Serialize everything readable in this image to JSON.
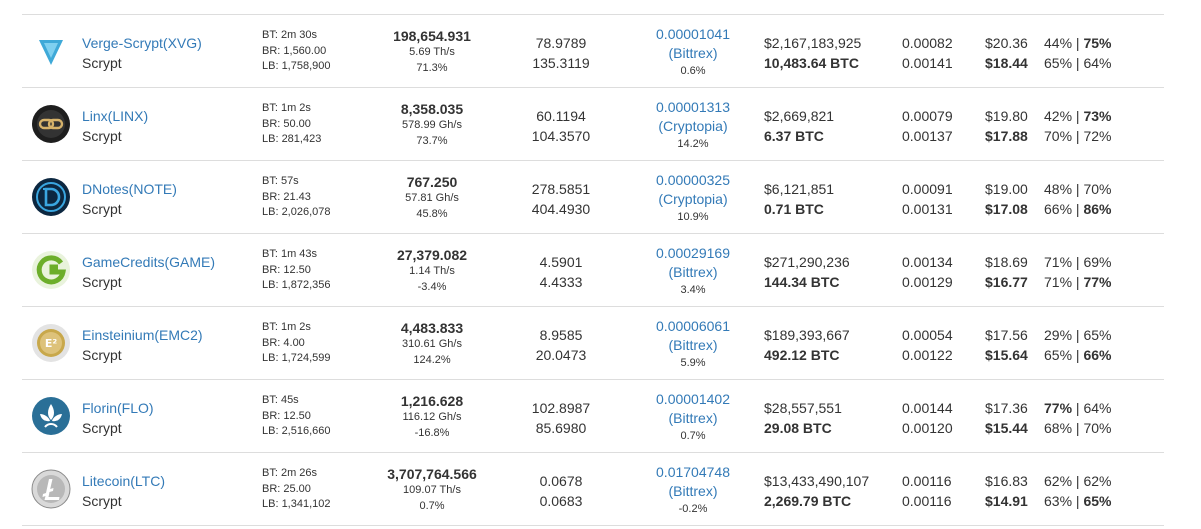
{
  "rows": [
    {
      "id": "xvg",
      "icon": "verge-icon",
      "coin_name": "Verge-Scrypt(XVG)",
      "algorithm": "Scrypt",
      "block_time": "BT: 2m 30s",
      "block_reward": "BR: 1,560.00",
      "last_block": "LB: 1,758,900",
      "difficulty": "198,654.931",
      "nethash": "5.69 Th/s",
      "difficulty_change": "71.3%",
      "est_rewards": "78.9789",
      "est_rewards_24h": "135.3119",
      "exchange_rate": "0.00001041",
      "exchange": "(Bittrex)",
      "exchange_rate_change": "0.6%",
      "market_cap": "$2,167,183,925",
      "volume": "10,483.64 BTC",
      "btc_rev": "0.00082",
      "btc_rev_24h": "0.00141",
      "rev": "$20.36",
      "rev_24h": "$18.44",
      "profit_a_1": "44%",
      "profit_b_1": "75%",
      "bold_a_1": false,
      "bold_b_1": true,
      "profit_a_2": "65%",
      "profit_b_2": "64%",
      "bold_a_2": false,
      "bold_b_2": false
    },
    {
      "id": "linx",
      "icon": "linx-icon",
      "coin_name": "Linx(LINX)",
      "algorithm": "Scrypt",
      "block_time": "BT: 1m 2s",
      "block_reward": "BR: 50.00",
      "last_block": "LB: 281,423",
      "difficulty": "8,358.035",
      "nethash": "578.99 Gh/s",
      "difficulty_change": "73.7%",
      "est_rewards": "60.1194",
      "est_rewards_24h": "104.3570",
      "exchange_rate": "0.00001313",
      "exchange": "(Cryptopia)",
      "exchange_rate_change": "14.2%",
      "market_cap": "$2,669,821",
      "volume": "6.37 BTC",
      "btc_rev": "0.00079",
      "btc_rev_24h": "0.00137",
      "rev": "$19.80",
      "rev_24h": "$17.88",
      "profit_a_1": "42%",
      "profit_b_1": "73%",
      "bold_a_1": false,
      "bold_b_1": true,
      "profit_a_2": "70%",
      "profit_b_2": "72%",
      "bold_a_2": false,
      "bold_b_2": false
    },
    {
      "id": "note",
      "icon": "dnotes-icon",
      "coin_name": "DNotes(NOTE)",
      "algorithm": "Scrypt",
      "block_time": "BT: 57s",
      "block_reward": "BR: 21.43",
      "last_block": "LB: 2,026,078",
      "difficulty": "767.250",
      "nethash": "57.81 Gh/s",
      "difficulty_change": "45.8%",
      "est_rewards": "278.5851",
      "est_rewards_24h": "404.4930",
      "exchange_rate": "0.00000325",
      "exchange": "(Cryptopia)",
      "exchange_rate_change": "10.9%",
      "market_cap": "$6,121,851",
      "volume": "0.71 BTC",
      "btc_rev": "0.00091",
      "btc_rev_24h": "0.00131",
      "rev": "$19.00",
      "rev_24h": "$17.08",
      "profit_a_1": "48%",
      "profit_b_1": "70%",
      "bold_a_1": false,
      "bold_b_1": false,
      "profit_a_2": "66%",
      "profit_b_2": "86%",
      "bold_a_2": false,
      "bold_b_2": true
    },
    {
      "id": "game",
      "icon": "gamecredits-icon",
      "coin_name": "GameCredits(GAME)",
      "algorithm": "Scrypt",
      "block_time": "BT: 1m 43s",
      "block_reward": "BR: 12.50",
      "last_block": "LB: 1,872,356",
      "difficulty": "27,379.082",
      "nethash": "1.14 Th/s",
      "difficulty_change": "-3.4%",
      "est_rewards": "4.5901",
      "est_rewards_24h": "4.4333",
      "exchange_rate": "0.00029169",
      "exchange": "(Bittrex)",
      "exchange_rate_change": "3.4%",
      "market_cap": "$271,290,236",
      "volume": "144.34 BTC",
      "btc_rev": "0.00134",
      "btc_rev_24h": "0.00129",
      "rev": "$18.69",
      "rev_24h": "$16.77",
      "profit_a_1": "71%",
      "profit_b_1": "69%",
      "bold_a_1": false,
      "bold_b_1": false,
      "profit_a_2": "71%",
      "profit_b_2": "77%",
      "bold_a_2": false,
      "bold_b_2": true
    },
    {
      "id": "emc2",
      "icon": "einsteinium-icon",
      "coin_name": "Einsteinium(EMC2)",
      "algorithm": "Scrypt",
      "block_time": "BT: 1m 2s",
      "block_reward": "BR: 4.00",
      "last_block": "LB: 1,724,599",
      "difficulty": "4,483.833",
      "nethash": "310.61 Gh/s",
      "difficulty_change": "124.2%",
      "est_rewards": "8.9585",
      "est_rewards_24h": "20.0473",
      "exchange_rate": "0.00006061",
      "exchange": "(Bittrex)",
      "exchange_rate_change": "5.9%",
      "market_cap": "$189,393,667",
      "volume": "492.12 BTC",
      "btc_rev": "0.00054",
      "btc_rev_24h": "0.00122",
      "rev": "$17.56",
      "rev_24h": "$15.64",
      "profit_a_1": "29%",
      "profit_b_1": "65%",
      "bold_a_1": false,
      "bold_b_1": false,
      "profit_a_2": "65%",
      "profit_b_2": "66%",
      "bold_a_2": false,
      "bold_b_2": true
    },
    {
      "id": "flo",
      "icon": "florin-icon",
      "coin_name": "Florin(FLO)",
      "algorithm": "Scrypt",
      "block_time": "BT: 45s",
      "block_reward": "BR: 12.50",
      "last_block": "LB: 2,516,660",
      "difficulty": "1,216.628",
      "nethash": "116.12 Gh/s",
      "difficulty_change": "-16.8%",
      "est_rewards": "102.8987",
      "est_rewards_24h": "85.6980",
      "exchange_rate": "0.00001402",
      "exchange": "(Bittrex)",
      "exchange_rate_change": "0.7%",
      "market_cap": "$28,557,551",
      "volume": "29.08 BTC",
      "btc_rev": "0.00144",
      "btc_rev_24h": "0.00120",
      "rev": "$17.36",
      "rev_24h": "$15.44",
      "profit_a_1": "77%",
      "profit_b_1": "64%",
      "bold_a_1": true,
      "bold_b_1": false,
      "profit_a_2": "68%",
      "profit_b_2": "70%",
      "bold_a_2": false,
      "bold_b_2": false
    },
    {
      "id": "ltc",
      "icon": "litecoin-icon",
      "coin_name": "Litecoin(LTC)",
      "algorithm": "Scrypt",
      "block_time": "BT: 2m 26s",
      "block_reward": "BR: 25.00",
      "last_block": "LB: 1,341,102",
      "difficulty": "3,707,764.566",
      "nethash": "109.07 Th/s",
      "difficulty_change": "0.7%",
      "est_rewards": "0.0678",
      "est_rewards_24h": "0.0683",
      "exchange_rate": "0.01704748",
      "exchange": "(Bittrex)",
      "exchange_rate_change": "-0.2%",
      "market_cap": "$13,433,490,107",
      "volume": "2,269.79 BTC",
      "btc_rev": "0.00116",
      "btc_rev_24h": "0.00116",
      "rev": "$16.83",
      "rev_24h": "$14.91",
      "profit_a_1": "62%",
      "profit_b_1": "62%",
      "bold_a_1": false,
      "bold_b_1": false,
      "profit_a_2": "63%",
      "profit_b_2": "65%",
      "bold_a_2": false,
      "bold_b_2": true
    }
  ],
  "separator": " | "
}
